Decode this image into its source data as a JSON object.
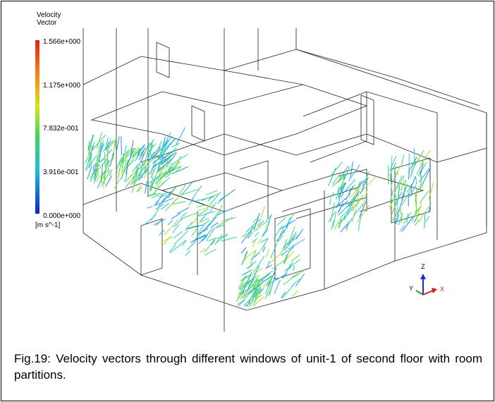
{
  "legend": {
    "title_lines": [
      "Velocity",
      "Vector"
    ],
    "ticks": [
      "1.566e+000",
      "1.175e+000",
      "7.832e-001",
      "3.916e-001",
      "0.000e+000"
    ],
    "unit": "[m s^-1]"
  },
  "axes": {
    "z": "Z",
    "y": "Y",
    "x": "X"
  },
  "caption": "Fig.19: Velocity vectors through different windows of unit-1 of second floor with room partitions."
}
